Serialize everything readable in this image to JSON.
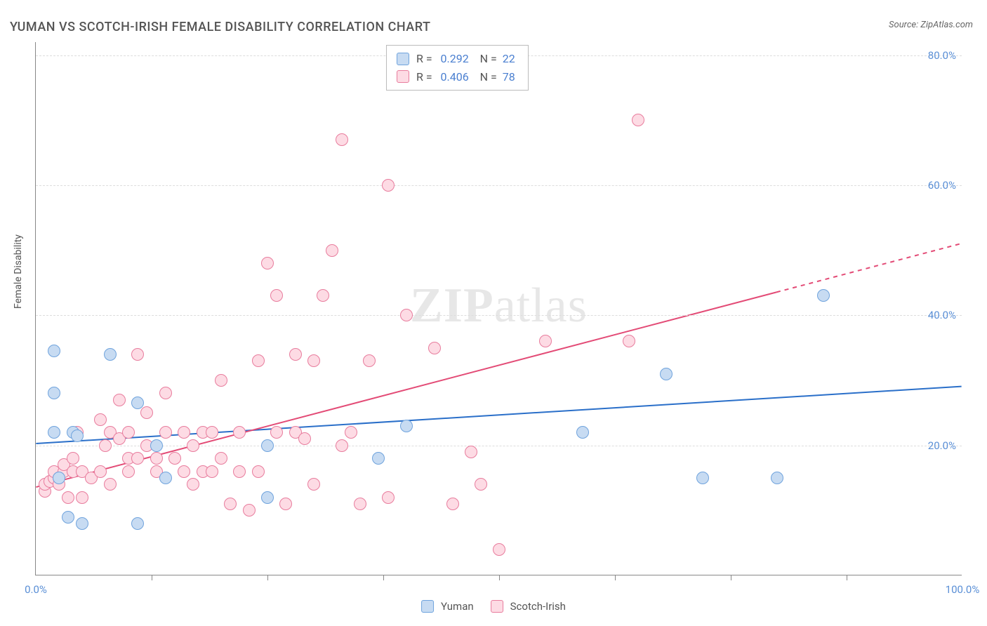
{
  "title": "YUMAN VS SCOTCH-IRISH FEMALE DISABILITY CORRELATION CHART",
  "source_label": "Source: ZipAtlas.com",
  "y_axis_label": "Female Disability",
  "watermark_a": "ZIP",
  "watermark_b": "atlas",
  "chart": {
    "type": "scatter",
    "background_color": "#ffffff",
    "grid_color": "#dddddd",
    "axis_color": "#888888",
    "xlim": [
      0,
      100
    ],
    "ylim": [
      0,
      82
    ],
    "x_ticks_major": [
      0,
      100
    ],
    "x_ticks_minor": [
      12.5,
      25,
      37.5,
      50,
      62.5,
      75,
      87.5
    ],
    "x_tick_labels": {
      "0": "0.0%",
      "100": "100.0%"
    },
    "y_ticks": [
      20,
      40,
      60,
      80
    ],
    "y_tick_labels": {
      "20": "20.0%",
      "40": "40.0%",
      "60": "60.0%",
      "80": "80.0%"
    },
    "marker_size": 18,
    "line_width": 2,
    "label_color": "#5a8fd6",
    "axis_label_color": "#555555"
  },
  "series": {
    "yuman": {
      "label": "Yuman",
      "fill_color": "#c7dbf2",
      "stroke_color": "#6fa3dd",
      "line_color": "#2a6fc9",
      "r_value": "0.292",
      "n_value": "22",
      "trend": {
        "x1": 0,
        "y1": 20.2,
        "x2": 100,
        "y2": 29.0
      },
      "points": [
        [
          2,
          34.5
        ],
        [
          2,
          28
        ],
        [
          2,
          22
        ],
        [
          4,
          22
        ],
        [
          3.5,
          9
        ],
        [
          5,
          8
        ],
        [
          11,
          8
        ],
        [
          8,
          34
        ],
        [
          11,
          26.5
        ],
        [
          13,
          20
        ],
        [
          14,
          15
        ],
        [
          25,
          12
        ],
        [
          25,
          20
        ],
        [
          37,
          18
        ],
        [
          59,
          22
        ],
        [
          68,
          31
        ],
        [
          80,
          15
        ],
        [
          72,
          15
        ],
        [
          85,
          43
        ],
        [
          40,
          23
        ],
        [
          2.5,
          15
        ],
        [
          4.5,
          21.5
        ]
      ]
    },
    "scotch_irish": {
      "label": "Scotch-Irish",
      "fill_color": "#fddbe4",
      "stroke_color": "#e87c9d",
      "line_color": "#e34b76",
      "r_value": "0.406",
      "n_value": "78",
      "trend": {
        "x1": 0,
        "y1": 13.5,
        "x2": 80,
        "y2": 43.5,
        "dash_to_x": 100,
        "dash_to_y": 51.0
      },
      "points": [
        [
          1,
          13
        ],
        [
          1,
          14
        ],
        [
          1.5,
          14.5
        ],
        [
          2,
          15
        ],
        [
          2,
          16
        ],
        [
          2.5,
          15
        ],
        [
          2.5,
          14
        ],
        [
          3,
          16
        ],
        [
          3,
          17
        ],
        [
          3.5,
          12
        ],
        [
          4,
          16
        ],
        [
          4,
          18
        ],
        [
          4.5,
          22
        ],
        [
          5,
          16
        ],
        [
          5,
          12
        ],
        [
          6,
          15
        ],
        [
          7,
          16
        ],
        [
          7,
          24
        ],
        [
          7.5,
          20
        ],
        [
          8,
          14
        ],
        [
          8,
          22
        ],
        [
          9,
          21
        ],
        [
          9,
          27
        ],
        [
          10,
          18
        ],
        [
          10,
          16
        ],
        [
          10,
          22
        ],
        [
          11,
          18
        ],
        [
          11,
          34
        ],
        [
          12,
          20
        ],
        [
          12,
          25
        ],
        [
          13,
          18
        ],
        [
          13,
          16
        ],
        [
          14,
          22
        ],
        [
          14,
          28
        ],
        [
          15,
          18
        ],
        [
          16,
          16
        ],
        [
          16,
          22
        ],
        [
          17,
          14
        ],
        [
          17,
          20
        ],
        [
          18,
          16
        ],
        [
          18,
          22
        ],
        [
          19,
          22
        ],
        [
          19,
          16
        ],
        [
          20,
          18
        ],
        [
          20,
          30
        ],
        [
          21,
          11
        ],
        [
          22,
          16
        ],
        [
          22,
          22
        ],
        [
          23,
          10
        ],
        [
          24,
          33
        ],
        [
          24,
          16
        ],
        [
          25,
          48
        ],
        [
          26,
          22
        ],
        [
          26,
          43
        ],
        [
          27,
          11
        ],
        [
          28,
          22
        ],
        [
          28,
          34
        ],
        [
          29,
          21
        ],
        [
          30,
          33
        ],
        [
          30,
          14
        ],
        [
          31,
          43
        ],
        [
          32,
          50
        ],
        [
          33,
          20
        ],
        [
          33,
          67
        ],
        [
          34,
          22
        ],
        [
          35,
          11
        ],
        [
          36,
          33
        ],
        [
          38,
          12
        ],
        [
          38,
          60
        ],
        [
          40,
          40
        ],
        [
          43,
          35
        ],
        [
          45,
          11
        ],
        [
          47,
          19
        ],
        [
          48,
          14
        ],
        [
          50,
          4
        ],
        [
          55,
          36
        ],
        [
          64,
          36
        ],
        [
          65,
          70
        ]
      ]
    }
  },
  "legend_bottom": {
    "items": [
      "yuman",
      "scotch_irish"
    ]
  },
  "stats_legend": {
    "r_label": "R =",
    "n_label": "N ="
  }
}
